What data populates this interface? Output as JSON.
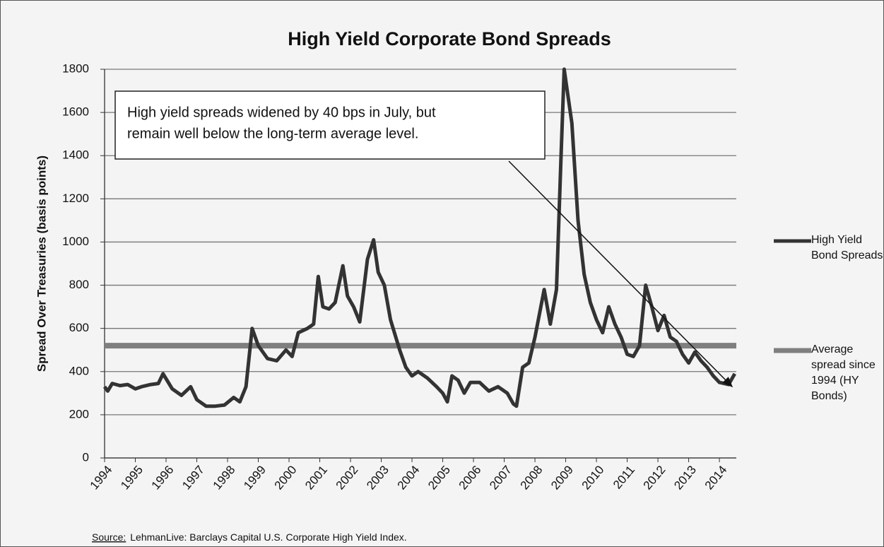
{
  "chart_data": {
    "type": "line",
    "title": "High Yield Corporate Bond Spreads",
    "y_label": "Spread Over Treasuries (basis points)",
    "annotation": [
      "High yield spreads widened by 40 bps in July, but",
      "remain well below the long-term average level."
    ],
    "source_label": "Source:",
    "source_text": "LehmanLive: Barclays Capital U.S. Corporate High Yield Index.",
    "xlim": [
      1994,
      2014.55
    ],
    "xticks": [
      1994,
      1995,
      1996,
      1997,
      1998,
      1999,
      2000,
      2001,
      2002,
      2003,
      2004,
      2005,
      2006,
      2007,
      2008,
      2009,
      2010,
      2011,
      2012,
      2013,
      2014
    ],
    "ylim": [
      0,
      1800
    ],
    "yticks": [
      0,
      200,
      400,
      600,
      800,
      1000,
      1200,
      1400,
      1600,
      1800
    ],
    "grid": true,
    "series": [
      {
        "name": "High Yield Bond Spreads",
        "color": "#333333",
        "x": [
          1994.0,
          1994.1,
          1994.25,
          1994.5,
          1994.75,
          1995.0,
          1995.2,
          1995.5,
          1995.75,
          1995.9,
          1996.2,
          1996.5,
          1996.8,
          1997.0,
          1997.3,
          1997.6,
          1997.9,
          1998.2,
          1998.4,
          1998.6,
          1998.8,
          1999.0,
          1999.3,
          1999.6,
          1999.9,
          2000.1,
          2000.3,
          2000.6,
          2000.8,
          2000.95,
          2001.1,
          2001.3,
          2001.5,
          2001.75,
          2001.9,
          2002.1,
          2002.3,
          2002.55,
          2002.75,
          2002.9,
          2003.1,
          2003.3,
          2003.6,
          2003.8,
          2004.0,
          2004.2,
          2004.5,
          2004.8,
          2005.0,
          2005.15,
          2005.3,
          2005.5,
          2005.7,
          2005.9,
          2006.2,
          2006.5,
          2006.8,
          2007.1,
          2007.3,
          2007.4,
          2007.6,
          2007.8,
          2008.0,
          2008.3,
          2008.5,
          2008.7,
          2008.85,
          2008.95,
          2009.2,
          2009.4,
          2009.6,
          2009.8,
          2010.0,
          2010.2,
          2010.4,
          2010.6,
          2010.8,
          2011.0,
          2011.2,
          2011.4,
          2011.6,
          2011.8,
          2012.0,
          2012.2,
          2012.4,
          2012.6,
          2012.8,
          2013.0,
          2013.2,
          2013.4,
          2013.6,
          2013.8,
          2014.0,
          2014.3,
          2014.5
        ],
        "values": [
          330,
          310,
          345,
          335,
          340,
          320,
          330,
          340,
          345,
          390,
          320,
          290,
          330,
          270,
          240,
          240,
          245,
          280,
          260,
          330,
          600,
          520,
          460,
          450,
          500,
          470,
          580,
          600,
          620,
          840,
          700,
          690,
          720,
          890,
          750,
          700,
          630,
          920,
          1010,
          860,
          800,
          640,
          500,
          420,
          380,
          400,
          370,
          330,
          300,
          260,
          380,
          360,
          300,
          350,
          350,
          310,
          330,
          300,
          250,
          240,
          420,
          440,
          560,
          780,
          620,
          780,
          1400,
          1800,
          1550,
          1100,
          850,
          720,
          640,
          580,
          700,
          620,
          560,
          480,
          470,
          520,
          800,
          700,
          590,
          660,
          560,
          540,
          480,
          440,
          490,
          450,
          420,
          380,
          350,
          340,
          390
        ]
      },
      {
        "name": "Average spread since 1994 (HY Bonds)",
        "color": "#7f7f7f",
        "x": [
          1994,
          2014.55
        ],
        "values": [
          520,
          520
        ]
      }
    ]
  }
}
